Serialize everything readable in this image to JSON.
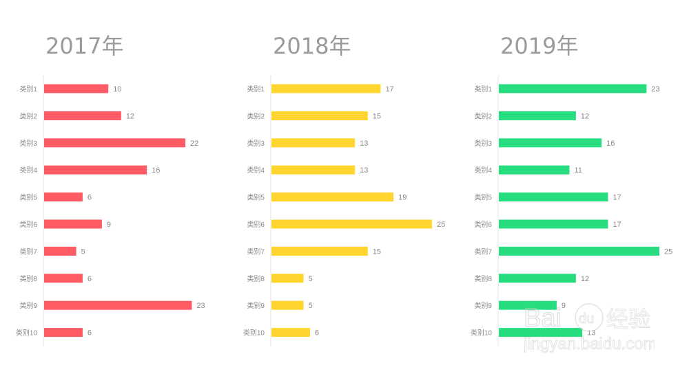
{
  "chart_data": [
    {
      "type": "bar",
      "orientation": "horizontal",
      "title": "2017年",
      "color": "#ff5b65",
      "categories": [
        "类别1",
        "类别2",
        "类别3",
        "类别4",
        "类别5",
        "类别6",
        "类别7",
        "类别8",
        "类别9",
        "类别10"
      ],
      "values": [
        10,
        12,
        22,
        16,
        6,
        9,
        5,
        6,
        23,
        6
      ],
      "xlim": [
        0,
        25
      ],
      "grid": false
    },
    {
      "type": "bar",
      "orientation": "horizontal",
      "title": "2018年",
      "color": "#ffd52e",
      "categories": [
        "类别1",
        "类别2",
        "类别3",
        "类别4",
        "类别5",
        "类别6",
        "类别7",
        "类别8",
        "类别9",
        "类别10"
      ],
      "values": [
        17,
        15,
        13,
        13,
        19,
        25,
        15,
        5,
        5,
        6
      ],
      "xlim": [
        0,
        25
      ],
      "grid": false
    },
    {
      "type": "bar",
      "orientation": "horizontal",
      "title": "2019年",
      "color": "#28dd80",
      "categories": [
        "类别1",
        "类别2",
        "类别3",
        "类别4",
        "类别5",
        "类别6",
        "类别7",
        "类别8",
        "类别9",
        "类别10"
      ],
      "values": [
        23,
        12,
        16,
        11,
        17,
        17,
        25,
        12,
        9,
        13
      ],
      "xlim": [
        0,
        25
      ],
      "grid": false
    }
  ],
  "watermark": {
    "logo": "Baidu经验",
    "url_text": "jingyan.baidu.com"
  }
}
